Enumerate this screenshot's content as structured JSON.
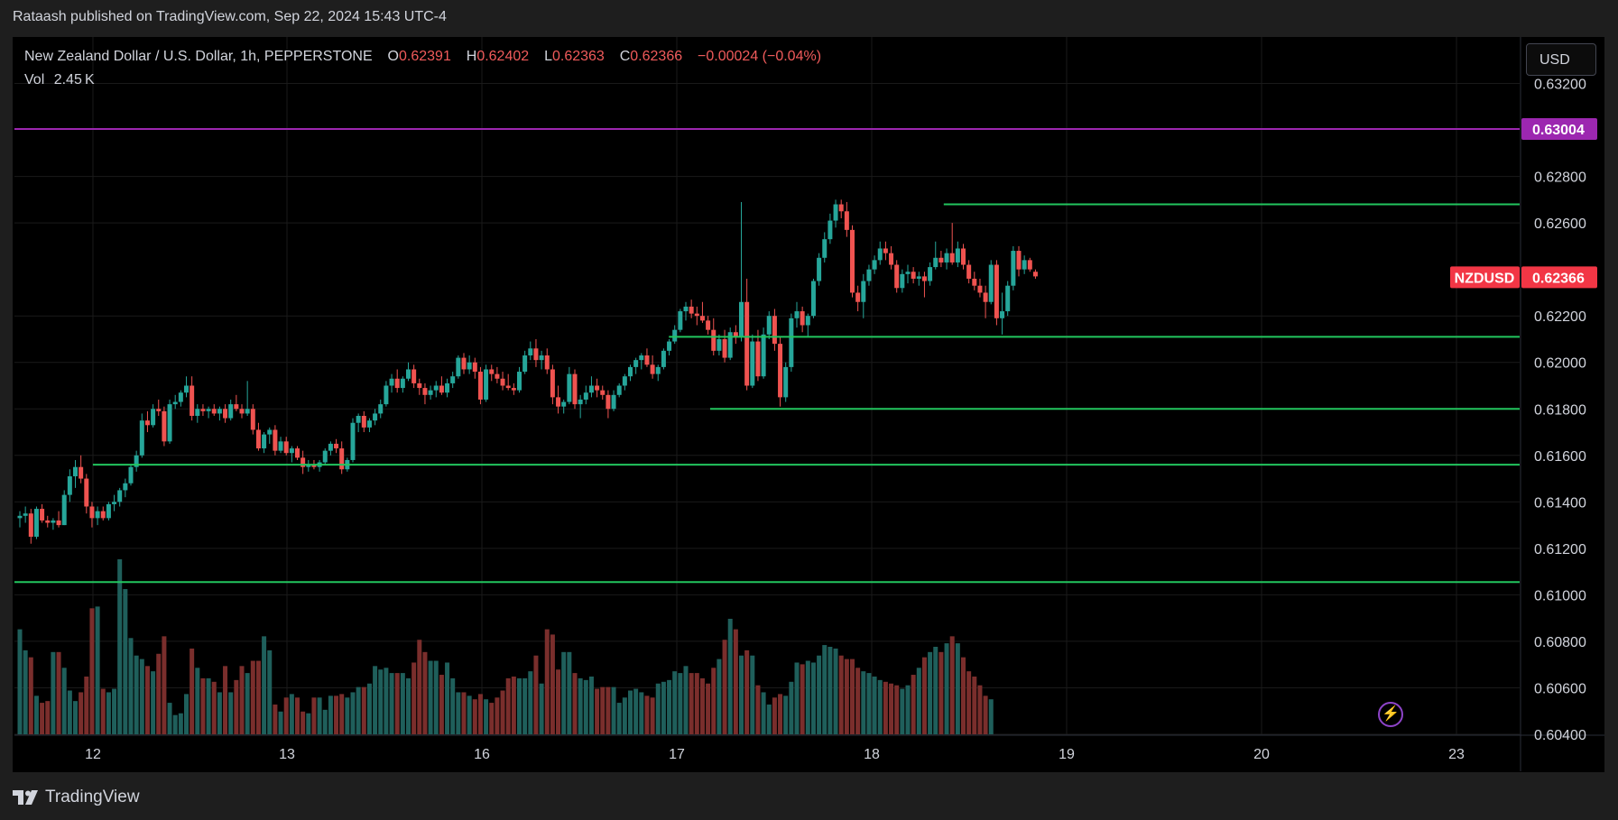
{
  "header": {
    "published": "Rataash published on TradingView.com, Sep 22, 2024 15:43 UTC-4"
  },
  "legend": {
    "title": "New Zealand Dollar / U.S. Dollar, 1h, PEPPERSTONE",
    "o_label": "O",
    "o": "0.62391",
    "h_label": "H",
    "h": "0.62402",
    "l_label": "L",
    "l": "0.62363",
    "c_label": "C",
    "c": "0.62366",
    "change": "−0.00024 (−0.04%)",
    "vol_label": "Vol",
    "vol": "2.45 K"
  },
  "currency_button": "USD",
  "footer": {
    "brand": "TradingView"
  },
  "icons": {
    "logo": "tradingview-logo-icon",
    "bolt": "lightning-icon"
  },
  "colors": {
    "up": "#26a69a",
    "down": "#ef5350",
    "line": "#22c55e",
    "purple": "#9c27b0",
    "tag": "#f23645"
  },
  "chart_data": {
    "type": "candlestick",
    "symbol": "NZDUSD",
    "title": "New Zealand Dollar / U.S. Dollar, 1h, PEPPERSTONE",
    "ylim": [
      0.604,
      0.634
    ],
    "yticks": [
      "0.63200",
      "0.62800",
      "0.62600",
      "0.62200",
      "0.62000",
      "0.61800",
      "0.61600",
      "0.61400",
      "0.61200",
      "0.61000",
      "0.60800",
      "0.60600",
      "0.60400"
    ],
    "xticks": [
      "12",
      "13",
      "16",
      "17",
      "18",
      "19",
      "20",
      "23"
    ],
    "price_tags": [
      {
        "label": "",
        "value": "0.63004",
        "color": "#9c27b0"
      },
      {
        "label": "NZDUSD",
        "value": "0.62366",
        "color": "#f23645"
      }
    ],
    "horizontal_lines": [
      {
        "price": 0.63004,
        "color": "#9c27b0",
        "from": 0.0
      },
      {
        "price": 0.6268,
        "color": "#22c55e",
        "from": 0.6174
      },
      {
        "price": 0.6211,
        "color": "#22c55e",
        "from": 0.4348
      },
      {
        "price": 0.618,
        "color": "#22c55e",
        "from": 0.4622
      },
      {
        "price": 0.6156,
        "color": "#22c55e",
        "from": 0.0521
      },
      {
        "price": 0.61055,
        "color": "#22c55e",
        "from": 0.0
      }
    ],
    "candles": [
      [
        0.6133,
        0.6136,
        0.6129,
        0.6134
      ],
      [
        0.6134,
        0.6138,
        0.6131,
        0.6135
      ],
      [
        0.6135,
        0.6137,
        0.6122,
        0.6125
      ],
      [
        0.6125,
        0.6138,
        0.6124,
        0.6137
      ],
      [
        0.6137,
        0.6139,
        0.6131,
        0.6132
      ],
      [
        0.6132,
        0.6134,
        0.6129,
        0.6131
      ],
      [
        0.6131,
        0.6133,
        0.6128,
        0.6132
      ],
      [
        0.6132,
        0.6136,
        0.6129,
        0.613
      ],
      [
        0.613,
        0.6145,
        0.613,
        0.6143
      ],
      [
        0.6143,
        0.6154,
        0.614,
        0.6151
      ],
      [
        0.6151,
        0.6158,
        0.6146,
        0.6155
      ],
      [
        0.6155,
        0.616,
        0.6148,
        0.615
      ],
      [
        0.615,
        0.6152,
        0.6135,
        0.6138
      ],
      [
        0.6138,
        0.614,
        0.6129,
        0.6133
      ],
      [
        0.6133,
        0.6138,
        0.613,
        0.6136
      ],
      [
        0.6136,
        0.6138,
        0.6132,
        0.6133
      ],
      [
        0.6133,
        0.614,
        0.6132,
        0.6139
      ],
      [
        0.6139,
        0.6143,
        0.6136,
        0.614
      ],
      [
        0.614,
        0.6146,
        0.6138,
        0.6145
      ],
      [
        0.6145,
        0.615,
        0.6142,
        0.6148
      ],
      [
        0.6148,
        0.6156,
        0.6147,
        0.6155
      ],
      [
        0.6155,
        0.6162,
        0.6153,
        0.616
      ],
      [
        0.616,
        0.6178,
        0.6159,
        0.6175
      ],
      [
        0.6175,
        0.6179,
        0.617,
        0.6173
      ],
      [
        0.6173,
        0.6182,
        0.6172,
        0.618
      ],
      [
        0.618,
        0.6184,
        0.6177,
        0.6179
      ],
      [
        0.6179,
        0.6181,
        0.6164,
        0.6166
      ],
      [
        0.6166,
        0.6184,
        0.6165,
        0.6182
      ],
      [
        0.6182,
        0.6186,
        0.618,
        0.6183
      ],
      [
        0.6183,
        0.6188,
        0.6181,
        0.6187
      ],
      [
        0.6187,
        0.6194,
        0.6185,
        0.619
      ],
      [
        0.619,
        0.6194,
        0.6175,
        0.6177
      ],
      [
        0.6177,
        0.6182,
        0.6174,
        0.618
      ],
      [
        0.618,
        0.6182,
        0.6177,
        0.6179
      ],
      [
        0.6179,
        0.6181,
        0.6176,
        0.618
      ],
      [
        0.618,
        0.6182,
        0.6177,
        0.6178
      ],
      [
        0.6178,
        0.6181,
        0.6175,
        0.618
      ],
      [
        0.618,
        0.6182,
        0.6174,
        0.6176
      ],
      [
        0.6176,
        0.6184,
        0.6175,
        0.6182
      ],
      [
        0.6182,
        0.6186,
        0.6179,
        0.618
      ],
      [
        0.618,
        0.6182,
        0.6176,
        0.6178
      ],
      [
        0.6178,
        0.6192,
        0.6177,
        0.618
      ],
      [
        0.618,
        0.6182,
        0.6169,
        0.6171
      ],
      [
        0.6171,
        0.6174,
        0.6162,
        0.6163
      ],
      [
        0.6163,
        0.617,
        0.6161,
        0.6169
      ],
      [
        0.6169,
        0.6172,
        0.6165,
        0.6171
      ],
      [
        0.6171,
        0.6173,
        0.616,
        0.6162
      ],
      [
        0.6162,
        0.6168,
        0.6161,
        0.6166
      ],
      [
        0.6166,
        0.6168,
        0.616,
        0.6161
      ],
      [
        0.6161,
        0.6164,
        0.6157,
        0.6163
      ],
      [
        0.6163,
        0.6164,
        0.6158,
        0.6159
      ],
      [
        0.6159,
        0.6162,
        0.6152,
        0.6155
      ],
      [
        0.6155,
        0.6158,
        0.6153,
        0.6156
      ],
      [
        0.6156,
        0.6158,
        0.6154,
        0.6155
      ],
      [
        0.6155,
        0.6158,
        0.6153,
        0.6157
      ],
      [
        0.6157,
        0.6163,
        0.6156,
        0.6162
      ],
      [
        0.6162,
        0.6166,
        0.616,
        0.6165
      ],
      [
        0.6165,
        0.6167,
        0.6161,
        0.6163
      ],
      [
        0.6163,
        0.6166,
        0.6152,
        0.6154
      ],
      [
        0.6154,
        0.6159,
        0.6153,
        0.6158
      ],
      [
        0.6158,
        0.6176,
        0.6157,
        0.6174
      ],
      [
        0.6174,
        0.6178,
        0.617,
        0.6177
      ],
      [
        0.6177,
        0.6179,
        0.617,
        0.6172
      ],
      [
        0.6172,
        0.6176,
        0.617,
        0.6175
      ],
      [
        0.6175,
        0.618,
        0.6173,
        0.6178
      ],
      [
        0.6178,
        0.6184,
        0.6176,
        0.6182
      ],
      [
        0.6182,
        0.6192,
        0.6181,
        0.619
      ],
      [
        0.619,
        0.6195,
        0.6187,
        0.6193
      ],
      [
        0.6193,
        0.6197,
        0.6187,
        0.6189
      ],
      [
        0.6189,
        0.6194,
        0.6187,
        0.6193
      ],
      [
        0.6193,
        0.62,
        0.6192,
        0.6197
      ],
      [
        0.6197,
        0.6199,
        0.6189,
        0.6191
      ],
      [
        0.6191,
        0.6193,
        0.6186,
        0.6189
      ],
      [
        0.6189,
        0.6191,
        0.6182,
        0.6186
      ],
      [
        0.6186,
        0.619,
        0.6184,
        0.6188
      ],
      [
        0.6188,
        0.6192,
        0.6185,
        0.619
      ],
      [
        0.619,
        0.6194,
        0.6186,
        0.6187
      ],
      [
        0.6187,
        0.6193,
        0.6185,
        0.6191
      ],
      [
        0.6191,
        0.6196,
        0.6189,
        0.6194
      ],
      [
        0.6194,
        0.6203,
        0.6193,
        0.6202
      ],
      [
        0.6202,
        0.6204,
        0.6195,
        0.6197
      ],
      [
        0.6197,
        0.6203,
        0.6195,
        0.62
      ],
      [
        0.62,
        0.6202,
        0.6193,
        0.6196
      ],
      [
        0.6196,
        0.6198,
        0.6182,
        0.6184
      ],
      [
        0.6184,
        0.6199,
        0.6183,
        0.6197
      ],
      [
        0.6197,
        0.6199,
        0.6192,
        0.6195
      ],
      [
        0.6195,
        0.6198,
        0.6191,
        0.6193
      ],
      [
        0.6193,
        0.6196,
        0.6188,
        0.619
      ],
      [
        0.619,
        0.6195,
        0.6188,
        0.6189
      ],
      [
        0.6189,
        0.6191,
        0.6186,
        0.6188
      ],
      [
        0.6188,
        0.6198,
        0.6187,
        0.6196
      ],
      [
        0.6196,
        0.6205,
        0.6195,
        0.6203
      ],
      [
        0.6203,
        0.6209,
        0.6201,
        0.6206
      ],
      [
        0.6206,
        0.621,
        0.6198,
        0.6201
      ],
      [
        0.6201,
        0.6205,
        0.6197,
        0.6203
      ],
      [
        0.6203,
        0.6206,
        0.6195,
        0.6197
      ],
      [
        0.6197,
        0.6199,
        0.6182,
        0.6185
      ],
      [
        0.6185,
        0.619,
        0.6178,
        0.6181
      ],
      [
        0.6181,
        0.6184,
        0.6178,
        0.6183
      ],
      [
        0.6183,
        0.6198,
        0.6182,
        0.6195
      ],
      [
        0.6195,
        0.6197,
        0.618,
        0.6182
      ],
      [
        0.6182,
        0.6186,
        0.6176,
        0.6184
      ],
      [
        0.6184,
        0.619,
        0.6182,
        0.6187
      ],
      [
        0.6187,
        0.6194,
        0.6185,
        0.619
      ],
      [
        0.619,
        0.6193,
        0.6185,
        0.6188
      ],
      [
        0.6188,
        0.619,
        0.6184,
        0.6186
      ],
      [
        0.6186,
        0.6188,
        0.6176,
        0.618
      ],
      [
        0.618,
        0.6188,
        0.6179,
        0.6186
      ],
      [
        0.6186,
        0.6191,
        0.6185,
        0.619
      ],
      [
        0.619,
        0.6195,
        0.6188,
        0.6194
      ],
      [
        0.6194,
        0.6199,
        0.6192,
        0.6198
      ],
      [
        0.6198,
        0.6202,
        0.6195,
        0.6201
      ],
      [
        0.6201,
        0.6204,
        0.6197,
        0.6203
      ],
      [
        0.6203,
        0.6206,
        0.6198,
        0.6199
      ],
      [
        0.6199,
        0.6203,
        0.6193,
        0.6195
      ],
      [
        0.6195,
        0.6199,
        0.6192,
        0.6198
      ],
      [
        0.6198,
        0.6206,
        0.6197,
        0.6205
      ],
      [
        0.6205,
        0.621,
        0.6203,
        0.6209
      ],
      [
        0.6209,
        0.6216,
        0.6208,
        0.6214
      ],
      [
        0.6214,
        0.6223,
        0.6213,
        0.6222
      ],
      [
        0.6222,
        0.6226,
        0.6218,
        0.6224
      ],
      [
        0.6224,
        0.6227,
        0.6219,
        0.6221
      ],
      [
        0.6221,
        0.6224,
        0.6216,
        0.622
      ],
      [
        0.622,
        0.6226,
        0.6217,
        0.6218
      ],
      [
        0.6218,
        0.622,
        0.6212,
        0.6214
      ],
      [
        0.6214,
        0.6219,
        0.6203,
        0.6205
      ],
      [
        0.6205,
        0.6212,
        0.6203,
        0.621
      ],
      [
        0.621,
        0.6214,
        0.62,
        0.6202
      ],
      [
        0.6202,
        0.6215,
        0.6201,
        0.6213
      ],
      [
        0.6213,
        0.6216,
        0.6208,
        0.6211
      ],
      [
        0.6211,
        0.6269,
        0.6209,
        0.6226
      ],
      [
        0.6226,
        0.6236,
        0.6188,
        0.619
      ],
      [
        0.619,
        0.6212,
        0.6189,
        0.6209
      ],
      [
        0.6209,
        0.6214,
        0.6192,
        0.6194
      ],
      [
        0.6194,
        0.6215,
        0.6193,
        0.6212
      ],
      [
        0.6212,
        0.6222,
        0.621,
        0.622
      ],
      [
        0.622,
        0.6223,
        0.6205,
        0.6208
      ],
      [
        0.6208,
        0.6211,
        0.6181,
        0.6185
      ],
      [
        0.6185,
        0.62,
        0.6183,
        0.6198
      ],
      [
        0.6198,
        0.6221,
        0.6196,
        0.6219
      ],
      [
        0.6219,
        0.6226,
        0.6215,
        0.6222
      ],
      [
        0.6222,
        0.6224,
        0.6213,
        0.6216
      ],
      [
        0.6216,
        0.6221,
        0.6211,
        0.622
      ],
      [
        0.622,
        0.6236,
        0.6219,
        0.6235
      ],
      [
        0.6235,
        0.6247,
        0.6233,
        0.6245
      ],
      [
        0.6245,
        0.6256,
        0.6243,
        0.6253
      ],
      [
        0.6253,
        0.6264,
        0.6251,
        0.6261
      ],
      [
        0.6261,
        0.627,
        0.6258,
        0.6268
      ],
      [
        0.6268,
        0.627,
        0.6262,
        0.6265
      ],
      [
        0.6265,
        0.6269,
        0.6254,
        0.6257
      ],
      [
        0.6257,
        0.6259,
        0.6228,
        0.623
      ],
      [
        0.623,
        0.6233,
        0.6222,
        0.6226
      ],
      [
        0.6226,
        0.6238,
        0.6219,
        0.6235
      ],
      [
        0.6235,
        0.6242,
        0.6233,
        0.624
      ],
      [
        0.624,
        0.6246,
        0.6238,
        0.6244
      ],
      [
        0.6244,
        0.6252,
        0.6242,
        0.6249
      ],
      [
        0.6249,
        0.6252,
        0.6244,
        0.6247
      ],
      [
        0.6247,
        0.625,
        0.624,
        0.6242
      ],
      [
        0.6242,
        0.6244,
        0.623,
        0.6232
      ],
      [
        0.6232,
        0.624,
        0.623,
        0.6238
      ],
      [
        0.6238,
        0.6242,
        0.6234,
        0.6239
      ],
      [
        0.6239,
        0.6241,
        0.6234,
        0.6236
      ],
      [
        0.6236,
        0.6239,
        0.6233,
        0.6237
      ],
      [
        0.6237,
        0.6239,
        0.6228,
        0.6235
      ],
      [
        0.6235,
        0.6243,
        0.6233,
        0.6241
      ],
      [
        0.6241,
        0.6252,
        0.624,
        0.6245
      ],
      [
        0.6245,
        0.6248,
        0.6241,
        0.6243
      ],
      [
        0.6243,
        0.6249,
        0.624,
        0.6247
      ],
      [
        0.6247,
        0.626,
        0.6242,
        0.6243
      ],
      [
        0.6243,
        0.6252,
        0.6241,
        0.6249
      ],
      [
        0.6249,
        0.6251,
        0.624,
        0.6242
      ],
      [
        0.6242,
        0.6244,
        0.6234,
        0.6236
      ],
      [
        0.6236,
        0.6239,
        0.6231,
        0.6233
      ],
      [
        0.6233,
        0.6236,
        0.6228,
        0.623
      ],
      [
        0.623,
        0.6233,
        0.6219,
        0.6226
      ],
      [
        0.6226,
        0.6244,
        0.6225,
        0.6242
      ],
      [
        0.6242,
        0.6244,
        0.6216,
        0.6219
      ],
      [
        0.6219,
        0.623,
        0.6212,
        0.6222
      ],
      [
        0.6222,
        0.6235,
        0.622,
        0.6233
      ],
      [
        0.6233,
        0.625,
        0.6231,
        0.6248
      ],
      [
        0.6248,
        0.625,
        0.6237,
        0.624
      ],
      [
        0.624,
        0.6246,
        0.6238,
        0.6244
      ],
      [
        0.6244,
        0.6245,
        0.6239,
        0.624
      ],
      [
        0.6239,
        0.624,
        0.6236,
        0.6237
      ]
    ],
    "volumes": [
      60,
      48,
      44,
      22,
      18,
      19,
      47,
      47,
      38,
      25,
      19,
      24,
      33,
      72,
      73,
      26,
      24,
      26,
      100,
      83,
      55,
      45,
      43,
      39,
      36,
      46,
      56,
      18,
      11,
      12,
      23,
      49,
      38,
      32,
      32,
      30,
      24,
      39,
      24,
      31,
      39,
      35,
      42,
      42,
      56,
      48,
      17,
      13,
      21,
      23,
      21,
      13,
      12,
      21,
      21,
      14,
      22,
      22,
      23,
      21,
      24,
      27,
      27,
      29,
      39,
      37,
      38,
      35,
      35,
      35,
      32,
      41,
      54,
      47,
      42,
      42,
      34,
      41,
      32,
      24,
      24,
      22,
      20,
      23,
      20,
      18,
      21,
      25,
      32,
      33,
      32,
      32,
      36,
      45,
      29,
      60,
      57,
      37,
      47,
      47,
      35,
      32,
      31,
      33,
      26,
      27,
      27,
      27,
      18,
      21,
      25,
      26,
      24,
      22,
      21,
      29,
      30,
      31,
      36,
      35,
      39,
      35,
      35,
      32,
      29,
      38,
      43,
      54,
      66,
      60,
      45,
      48,
      45,
      28,
      24,
      17,
      21,
      23,
      22,
      30,
      41,
      40,
      42,
      41,
      45,
      51,
      50,
      49,
      45,
      43,
      43,
      38,
      36,
      35,
      33,
      31,
      30,
      29,
      28,
      26,
      28,
      34,
      38,
      44,
      47,
      50,
      47,
      52,
      56,
      52,
      44,
      36,
      33,
      28,
      22,
      20
    ],
    "volume_colors_up_down": "derived from candle direction"
  }
}
